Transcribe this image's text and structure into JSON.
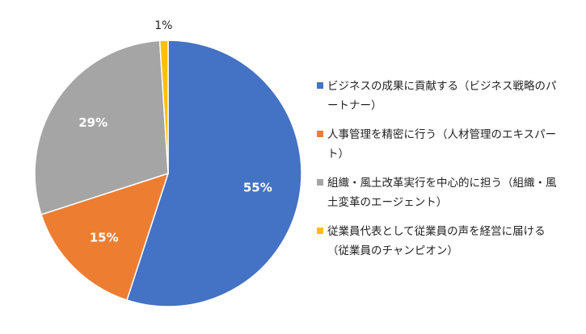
{
  "chart_data": {
    "type": "pie",
    "title": "",
    "legend_position": "right",
    "slices": [
      {
        "label": "ビジネスの成果に貢献する（ビジネス戦略のパートナー）",
        "value": 55,
        "value_label": "55%",
        "color": "#4472C4",
        "label_color": "#ffffff"
      },
      {
        "label": "人事管理を精密に行う（人材管理のエキスパート）",
        "value": 15,
        "value_label": "15%",
        "color": "#ED7D31",
        "label_color": "#ffffff"
      },
      {
        "label": "組織・風土改革実行を中心的に担う（組織・風土変革のエージェント）",
        "value": 29,
        "value_label": "29%",
        "color": "#A5A5A5",
        "label_color": "#ffffff"
      },
      {
        "label": "従業員代表として従業員の声を経営に届ける（従業員のチャンピオン）",
        "value": 1,
        "value_label": "1%",
        "color": "#FFC000",
        "label_color": "#222222"
      }
    ]
  }
}
